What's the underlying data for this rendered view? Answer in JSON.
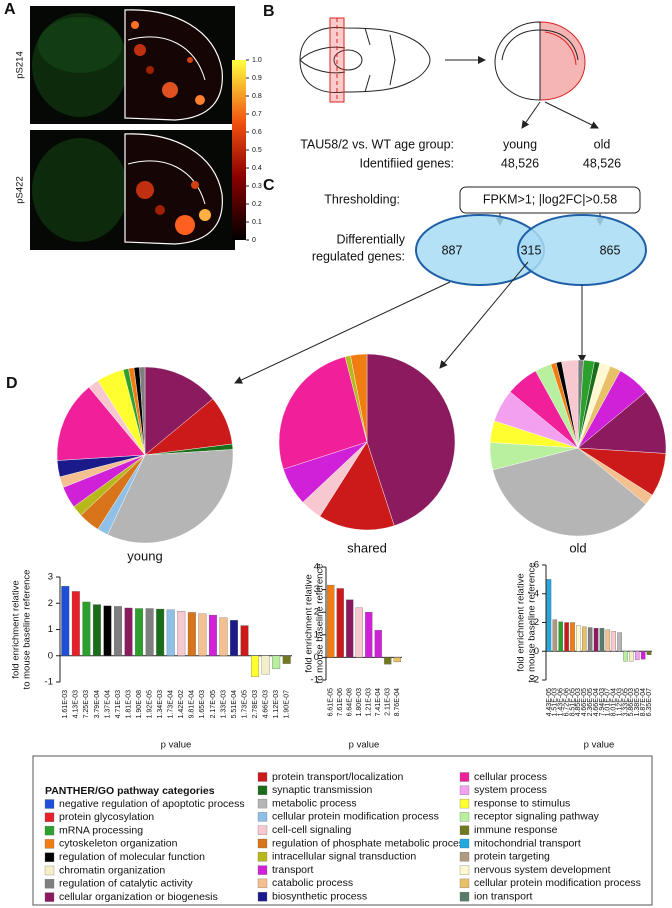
{
  "panel_labels": [
    "A",
    "B",
    "C",
    "D"
  ],
  "panel_a": {
    "labels": [
      "pS214",
      "pS422"
    ],
    "colorbar_ticks": [
      0,
      0.1,
      0.2,
      0.3,
      0.4,
      0.5,
      0.6,
      0.7,
      0.8,
      0.9,
      {
        "value": 1,
        "label": "1.0"
      }
    ]
  },
  "panel_b": {
    "group_label": "TAU58/2 vs. WT age group:",
    "groups": [
      "young",
      "old"
    ],
    "genes_label": "Identifiied genes:",
    "genes": [
      "48,526",
      "48,526"
    ]
  },
  "panel_c": {
    "threshold_label": "Thresholding:",
    "threshold": "FPKM>1; |log2FC|>0.58",
    "deg_label": [
      "Differentially",
      "regulated genes:"
    ],
    "venn": [
      "887",
      "315",
      "865"
    ]
  },
  "chart_data": [
    {
      "type": "pie",
      "title": "young",
      "values": [
        14,
        9,
        1,
        33,
        2,
        4,
        2,
        4,
        2,
        3,
        15,
        2,
        5,
        1,
        1,
        1,
        1
      ],
      "colors": [
        "#8b1a5e",
        "#cc1a1a",
        "#1a6e1a",
        "#b5b5b5",
        "#8fc0e8",
        "#d8751a",
        "#b8b81a",
        "#d020d8",
        "#f4c090",
        "#1a1a8a",
        "#f0209a",
        "#f8c8d0",
        "#ffff30",
        "#2ca02c",
        "#f07c12",
        "#000000",
        "#7f7f7f"
      ]
    },
    {
      "type": "pie",
      "title": "shared",
      "values": [
        45,
        14,
        4,
        7,
        26,
        1,
        3
      ],
      "colors": [
        "#8b1a5e",
        "#cc1a1a",
        "#f8c8d0",
        "#d020d8",
        "#f0209a",
        "#b8b81a",
        "#f07c12"
      ]
    },
    {
      "type": "pie",
      "title": "old",
      "values": [
        1,
        2,
        1,
        2,
        2,
        6,
        12,
        8,
        2,
        35,
        5,
        4,
        6,
        6,
        3,
        1,
        1,
        3
      ],
      "colors": [
        "#7f7f7f",
        "#2ca02c",
        "#1a6e1a",
        "#fff8d0",
        "#e8c068",
        "#d020d8",
        "#8b1a5e",
        "#cc1a1a",
        "#f4c090",
        "#b5b5b5",
        "#b8f0a0",
        "#ffff30",
        "#f4a0f0",
        "#f0209a",
        "#b8f0a0",
        "#f07c12",
        "#000000",
        "#f8c8d0"
      ]
    },
    {
      "type": "bar",
      "categories": [
        "1.61E-03",
        "4.13E-03",
        "7.25E-03",
        "3.79E-04",
        "1.37E-04",
        "4.71E-03",
        "1.81E-03",
        "1.90E-08",
        "1.92E-05",
        "1.34E-03",
        "1.73E-04",
        "1.42E-02",
        "9.81E-04",
        "1.65E-03",
        "2.17E-05",
        "1.33E-03",
        "5.51E-04",
        "1.73E-05",
        "2.78E-03",
        "4.66E-03",
        "1.12E-03",
        "1.90E-07"
      ],
      "values": [
        2.65,
        2.45,
        2.05,
        1.95,
        1.9,
        1.88,
        1.82,
        1.8,
        1.8,
        1.78,
        1.75,
        1.7,
        1.65,
        1.6,
        1.55,
        1.45,
        1.35,
        1.15,
        -0.8,
        -0.7,
        -0.5,
        -0.3
      ],
      "colors": [
        "#1f4fd8",
        "#e8202a",
        "#2ca02c",
        "#1a6e1a",
        "#000000",
        "#7f7f7f",
        "#8b1a5e",
        "#2ca02c",
        "#7f7f7f",
        "#1a6e1a",
        "#8fc0e8",
        "#f8c8d0",
        "#d8751a",
        "#f4c090",
        "#d020d8",
        "#f4c090",
        "#1a1a8a",
        "#cc1a1a",
        "#ffff30",
        "#f4efc8",
        "#b8f0a0",
        "#707820"
      ],
      "ylim": [
        -1,
        3
      ],
      "yticks": [
        -1,
        0,
        1,
        2,
        3
      ],
      "y_label": [
        "fold enrichment relative",
        "to mouse baseline reference"
      ],
      "x_label": "p value"
    },
    {
      "type": "bar",
      "categories": [
        "6.61E-05",
        "7.61E-06",
        "6.64E-08",
        "1.80E-03",
        "1.21E-03",
        "7.41E-04",
        "2.11E-03",
        "8.76E-04"
      ],
      "values": [
        3.2,
        3.05,
        2.55,
        2.2,
        2.0,
        1.2,
        -0.3,
        -0.2
      ],
      "colors": [
        "#f07c12",
        "#cc1a1a",
        "#8b1a5e",
        "#f8c8d0",
        "#d020d8",
        "#d020d8",
        "#707820",
        "#e8c068"
      ],
      "ylim": [
        -1,
        4
      ],
      "yticks": [
        -1,
        0,
        1,
        2,
        3,
        4
      ],
      "y_label": [
        "fold enrichment relative",
        "to mouse baseline reference"
      ],
      "x_label": "p value"
    },
    {
      "type": "bar",
      "categories": [
        "4.43E-05",
        "1.51E-03",
        "1.43E-06",
        "6.72E-06",
        "8.51E-05",
        "4.85E-03",
        "4.66E-05",
        "2.36E-05",
        "4.66E-04",
        "7.94E-03",
        "1.01E-07",
        "8.01E-04",
        "1.12E-03",
        "3.33E-05",
        "5.86E-03",
        "1.38E-05",
        "8.87E-04",
        "6.35E-07"
      ],
      "values": [
        5.0,
        2.2,
        2.05,
        2.0,
        2.0,
        1.8,
        1.7,
        1.65,
        1.6,
        1.6,
        1.5,
        1.4,
        1.3,
        -0.7,
        -0.7,
        -0.6,
        -0.55,
        -0.25
      ],
      "colors": [
        "#20a8e0",
        "#b09a80",
        "#2ca02c",
        "#cc1a1a",
        "#f07c12",
        "#fff8d0",
        "#e8c068",
        "#7f7f7f",
        "#8b1a5e",
        "#5a7a6a",
        "#f4c090",
        "#f8c8d0",
        "#b5b5b5",
        "#b8f0a0",
        "#f4efc8",
        "#f4a0f0",
        "#d020d8",
        "#707820"
      ],
      "ylim": [
        -2,
        6
      ],
      "yticks": [
        -2,
        0,
        2,
        4,
        6
      ],
      "y_label": [
        "fold enrichment relative",
        "to mouse baseline reference"
      ],
      "x_label": "p value"
    }
  ],
  "legend": {
    "title": "PANTHER/GO pathway categories",
    "items": [
      {
        "name": "negative regulation of apoptotic process",
        "color": "#1f4fd8"
      },
      {
        "name": "protein glycosylation",
        "color": "#e8202a"
      },
      {
        "name": "mRNA processing",
        "color": "#2ca02c"
      },
      {
        "name": "cytoskeleton organization",
        "color": "#f07c12"
      },
      {
        "name": "regulation of molecular function",
        "color": "#000000"
      },
      {
        "name": "chromatin organization",
        "color": "#f4efc8"
      },
      {
        "name": "regulation of catalytic activity",
        "color": "#7f7f7f"
      },
      {
        "name": "cellular organization or biogenesis",
        "color": "#8b1a5e"
      },
      {
        "name": "protein transport/localization",
        "color": "#cc1a1a"
      },
      {
        "name": "synaptic transmission",
        "color": "#1a6e1a"
      },
      {
        "name": "metabolic process",
        "color": "#b5b5b5"
      },
      {
        "name": "cellular protein modification process",
        "color": "#8fc0e8"
      },
      {
        "name": "cell-cell signaling",
        "color": "#f8c8d0"
      },
      {
        "name": "regulation of phosphate metabolic process",
        "color": "#d8751a"
      },
      {
        "name": "intracellular signal transduction",
        "color": "#b8b81a"
      },
      {
        "name": "transport",
        "color": "#d020d8"
      },
      {
        "name": "catabolic process",
        "color": "#f4c090"
      },
      {
        "name": "biosynthetic process",
        "color": "#1a1a8a"
      },
      {
        "name": "cellular process",
        "color": "#f0209a"
      },
      {
        "name": "system process",
        "color": "#f4a0f0"
      },
      {
        "name": "response to stimulus",
        "color": "#ffff30"
      },
      {
        "name": "receptor signaling pathway",
        "color": "#b8f0a0"
      },
      {
        "name": "immune response",
        "color": "#707820"
      },
      {
        "name": "mitochondrial transport",
        "color": "#20a8e0"
      },
      {
        "name": "protein targeting",
        "color": "#b09a80"
      },
      {
        "name": "nervous system development",
        "color": "#fff8d0"
      },
      {
        "name": "cellular protein modification process",
        "color": "#e8c068"
      },
      {
        "name": "ion transport",
        "color": "#5a7a6a"
      }
    ]
  }
}
